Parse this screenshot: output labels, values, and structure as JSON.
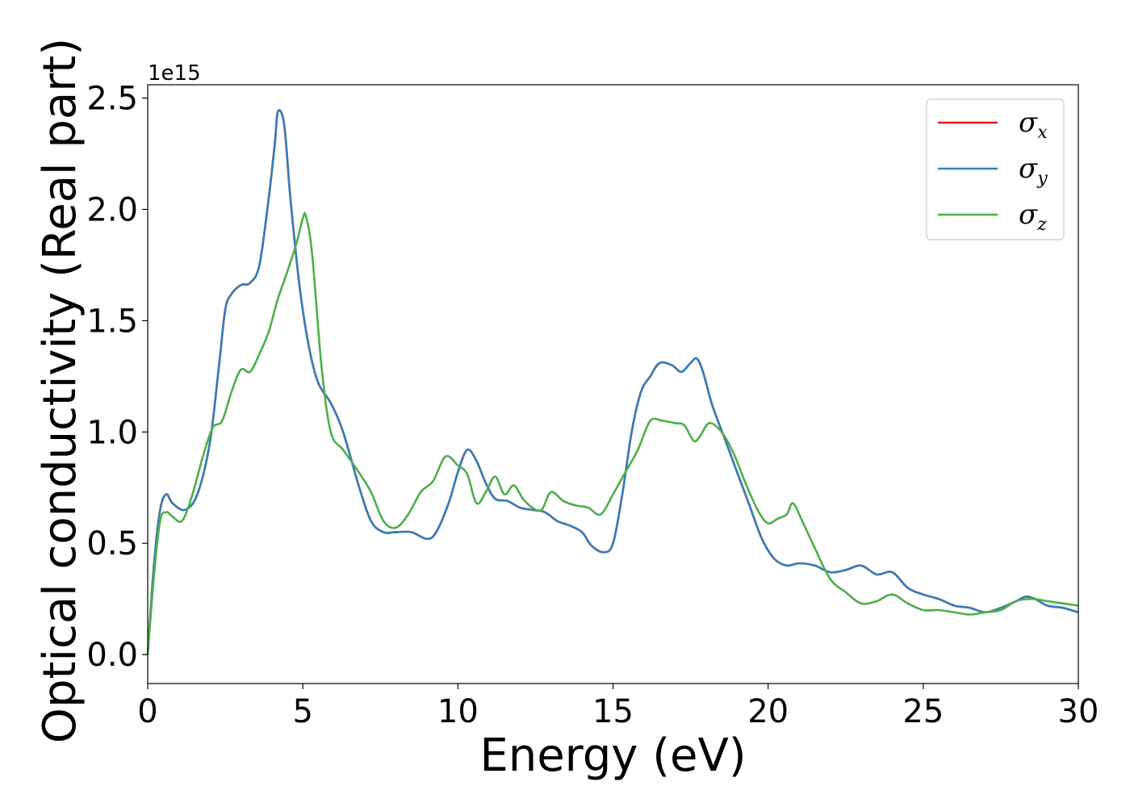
{
  "chart_data": {
    "type": "line",
    "title": "",
    "xlabel": "Energy (eV)",
    "ylabel": "Optical conductivity (Real part)",
    "y_offset_label": "1e15",
    "xlim": [
      0,
      30
    ],
    "ylim": [
      -0.13,
      2.56
    ],
    "x_ticks": [
      0,
      5,
      10,
      15,
      20,
      25,
      30
    ],
    "x_tick_labels": [
      "0",
      "5",
      "10",
      "15",
      "20",
      "25",
      "30"
    ],
    "y_ticks": [
      0.0,
      0.5,
      1.0,
      1.5,
      2.0,
      2.5
    ],
    "y_tick_labels": [
      "0.0",
      "0.5",
      "1.0",
      "1.5",
      "2.0",
      "2.5"
    ],
    "grid": false,
    "legend_position": "top-right",
    "series": [
      {
        "name": "σx",
        "symbol": "σ",
        "subscript": "x",
        "color": "#e41a1c",
        "x": [
          0,
          0.2,
          0.4,
          0.6,
          0.8,
          1.2,
          1.6,
          2.0,
          2.3,
          2.5,
          2.7,
          3.0,
          3.3,
          3.6,
          3.9,
          4.1,
          4.2,
          4.4,
          4.6,
          4.9,
          5.2,
          5.5,
          5.9,
          6.3,
          6.8,
          7.2,
          7.6,
          8.0,
          8.5,
          9.0,
          9.3,
          9.7,
          10.0,
          10.3,
          10.6,
          10.9,
          11.2,
          11.6,
          12.0,
          12.4,
          12.8,
          13.2,
          13.6,
          14.0,
          14.3,
          14.7,
          15.0,
          15.3,
          15.6,
          15.9,
          16.2,
          16.5,
          16.9,
          17.2,
          17.5,
          17.7,
          17.9,
          18.2,
          18.6,
          19.0,
          19.4,
          19.8,
          20.2,
          20.6,
          21.0,
          21.5,
          22.0,
          22.5,
          23.0,
          23.5,
          24.0,
          24.5,
          25.0,
          25.5,
          26.0,
          26.5,
          27.0,
          27.5,
          28.0,
          28.3,
          28.6,
          29.0,
          29.5,
          30.0
        ],
        "y": [
          0.0,
          0.4,
          0.65,
          0.72,
          0.68,
          0.65,
          0.72,
          0.95,
          1.3,
          1.55,
          1.62,
          1.66,
          1.67,
          1.75,
          2.05,
          2.3,
          2.44,
          2.38,
          2.05,
          1.65,
          1.38,
          1.22,
          1.13,
          1.0,
          0.76,
          0.6,
          0.55,
          0.55,
          0.55,
          0.52,
          0.55,
          0.68,
          0.82,
          0.92,
          0.87,
          0.77,
          0.7,
          0.69,
          0.66,
          0.65,
          0.64,
          0.6,
          0.58,
          0.55,
          0.49,
          0.46,
          0.5,
          0.72,
          1.0,
          1.18,
          1.25,
          1.31,
          1.3,
          1.27,
          1.31,
          1.33,
          1.27,
          1.12,
          0.97,
          0.82,
          0.67,
          0.52,
          0.43,
          0.4,
          0.41,
          0.4,
          0.37,
          0.38,
          0.4,
          0.36,
          0.37,
          0.3,
          0.27,
          0.25,
          0.22,
          0.21,
          0.19,
          0.21,
          0.24,
          0.26,
          0.25,
          0.22,
          0.21,
          0.19
        ]
      },
      {
        "name": "σy",
        "symbol": "σ",
        "subscript": "y",
        "color": "#377eb8",
        "x": [
          0,
          0.2,
          0.4,
          0.6,
          0.8,
          1.2,
          1.6,
          2.0,
          2.3,
          2.5,
          2.7,
          3.0,
          3.3,
          3.6,
          3.9,
          4.1,
          4.2,
          4.4,
          4.6,
          4.9,
          5.2,
          5.5,
          5.9,
          6.3,
          6.8,
          7.2,
          7.6,
          8.0,
          8.5,
          9.0,
          9.3,
          9.7,
          10.0,
          10.3,
          10.6,
          10.9,
          11.2,
          11.6,
          12.0,
          12.4,
          12.8,
          13.2,
          13.6,
          14.0,
          14.3,
          14.7,
          15.0,
          15.3,
          15.6,
          15.9,
          16.2,
          16.5,
          16.9,
          17.2,
          17.5,
          17.7,
          17.9,
          18.2,
          18.6,
          19.0,
          19.4,
          19.8,
          20.2,
          20.6,
          21.0,
          21.5,
          22.0,
          22.5,
          23.0,
          23.5,
          24.0,
          24.5,
          25.0,
          25.5,
          26.0,
          26.5,
          27.0,
          27.5,
          28.0,
          28.3,
          28.6,
          29.0,
          29.5,
          30.0
        ],
        "y": [
          0.0,
          0.4,
          0.65,
          0.72,
          0.68,
          0.65,
          0.72,
          0.95,
          1.3,
          1.55,
          1.62,
          1.66,
          1.67,
          1.75,
          2.05,
          2.3,
          2.44,
          2.38,
          2.05,
          1.65,
          1.38,
          1.22,
          1.13,
          1.0,
          0.76,
          0.6,
          0.55,
          0.55,
          0.55,
          0.52,
          0.55,
          0.68,
          0.82,
          0.92,
          0.87,
          0.77,
          0.7,
          0.69,
          0.66,
          0.65,
          0.64,
          0.6,
          0.58,
          0.55,
          0.49,
          0.46,
          0.5,
          0.72,
          1.0,
          1.18,
          1.25,
          1.31,
          1.3,
          1.27,
          1.31,
          1.33,
          1.27,
          1.12,
          0.97,
          0.82,
          0.67,
          0.52,
          0.43,
          0.4,
          0.41,
          0.4,
          0.37,
          0.38,
          0.4,
          0.36,
          0.37,
          0.3,
          0.27,
          0.25,
          0.22,
          0.21,
          0.19,
          0.21,
          0.24,
          0.26,
          0.25,
          0.22,
          0.21,
          0.19
        ]
      },
      {
        "name": "σz",
        "symbol": "σ",
        "subscript": "z",
        "color": "#4daf4a",
        "x": [
          0,
          0.2,
          0.4,
          0.6,
          0.8,
          1.1,
          1.4,
          1.8,
          2.1,
          2.4,
          2.7,
          3.0,
          3.3,
          3.6,
          3.9,
          4.2,
          4.5,
          4.8,
          5.0,
          5.1,
          5.3,
          5.6,
          5.9,
          6.3,
          6.8,
          7.2,
          7.6,
          8.0,
          8.4,
          8.8,
          9.2,
          9.6,
          10.0,
          10.3,
          10.6,
          10.9,
          11.2,
          11.5,
          11.8,
          12.1,
          12.4,
          12.7,
          13.0,
          13.4,
          13.8,
          14.2,
          14.6,
          15.0,
          15.4,
          15.8,
          16.2,
          16.6,
          17.0,
          17.3,
          17.6,
          17.8,
          18.1,
          18.5,
          18.9,
          19.3,
          19.7,
          20.0,
          20.3,
          20.6,
          20.8,
          21.1,
          21.5,
          22.0,
          22.5,
          23.0,
          23.5,
          24.0,
          24.5,
          25.0,
          25.5,
          26.0,
          26.5,
          27.0,
          27.5,
          28.0,
          28.5,
          29.0,
          29.5,
          30.0
        ],
        "y": [
          0.0,
          0.35,
          0.6,
          0.64,
          0.62,
          0.6,
          0.7,
          0.9,
          1.02,
          1.05,
          1.18,
          1.28,
          1.27,
          1.35,
          1.45,
          1.6,
          1.72,
          1.85,
          1.96,
          1.97,
          1.8,
          1.3,
          1.0,
          0.92,
          0.82,
          0.73,
          0.6,
          0.57,
          0.63,
          0.73,
          0.78,
          0.89,
          0.85,
          0.81,
          0.68,
          0.73,
          0.8,
          0.72,
          0.76,
          0.7,
          0.66,
          0.65,
          0.73,
          0.69,
          0.67,
          0.66,
          0.63,
          0.72,
          0.82,
          0.92,
          1.05,
          1.05,
          1.04,
          1.03,
          0.96,
          0.98,
          1.04,
          1.0,
          0.9,
          0.76,
          0.64,
          0.59,
          0.61,
          0.63,
          0.68,
          0.6,
          0.48,
          0.34,
          0.28,
          0.23,
          0.24,
          0.27,
          0.23,
          0.2,
          0.2,
          0.19,
          0.18,
          0.19,
          0.2,
          0.24,
          0.25,
          0.24,
          0.23,
          0.22
        ]
      }
    ]
  }
}
